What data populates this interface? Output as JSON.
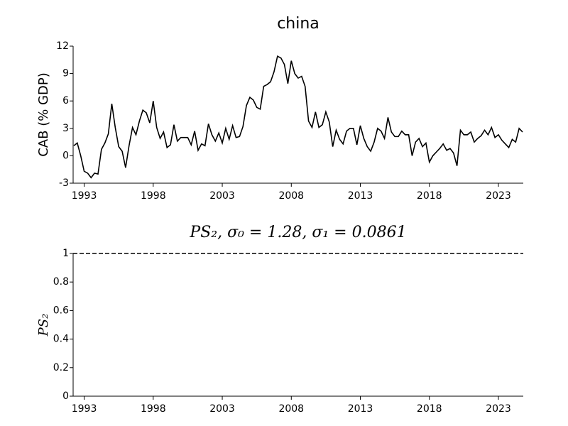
{
  "chart_data": [
    {
      "type": "line",
      "title": "china",
      "y_label": "CAB (% GDP)",
      "xlim": [
        1992.2,
        2024.8
      ],
      "xticks": [
        1993,
        1998,
        2003,
        2008,
        2013,
        2018,
        2023
      ],
      "ylim": [
        -3,
        12
      ],
      "yticks": [
        -3,
        0,
        3,
        6,
        9,
        12
      ],
      "series": [
        {
          "color": "#000000",
          "linestyle": "solid",
          "x": [
            1992.25,
            1992.5,
            1992.75,
            1993,
            1993.25,
            1993.5,
            1993.75,
            1994,
            1994.25,
            1994.5,
            1994.75,
            1995,
            1995.25,
            1995.5,
            1995.75,
            1996,
            1996.25,
            1996.5,
            1996.75,
            1997,
            1997.25,
            1997.5,
            1997.75,
            1998,
            1998.25,
            1998.5,
            1998.75,
            1999,
            1999.25,
            1999.5,
            1999.75,
            2000,
            2000.25,
            2000.5,
            2000.75,
            2001,
            2001.25,
            2001.5,
            2001.75,
            2002,
            2002.25,
            2002.5,
            2002.75,
            2003,
            2003.25,
            2003.5,
            2003.75,
            2004,
            2004.25,
            2004.5,
            2004.75,
            2005,
            2005.25,
            2005.5,
            2005.75,
            2006,
            2006.25,
            2006.5,
            2006.75,
            2007,
            2007.25,
            2007.5,
            2007.75,
            2008,
            2008.25,
            2008.5,
            2008.75,
            2009,
            2009.25,
            2009.5,
            2009.75,
            2010,
            2010.25,
            2010.5,
            2010.75,
            2011,
            2011.25,
            2011.5,
            2011.75,
            2012,
            2012.25,
            2012.5,
            2012.75,
            2013,
            2013.25,
            2013.5,
            2013.75,
            2014,
            2014.25,
            2014.5,
            2014.75,
            2015,
            2015.25,
            2015.5,
            2015.75,
            2016,
            2016.25,
            2016.5,
            2016.75,
            2017,
            2017.25,
            2017.5,
            2017.75,
            2018,
            2018.25,
            2018.5,
            2018.75,
            2019,
            2019.25,
            2019.5,
            2019.75,
            2020,
            2020.25,
            2020.5,
            2020.75,
            2021,
            2021.25,
            2021.5,
            2021.75,
            2022,
            2022.25,
            2022.5,
            2022.75,
            2023,
            2023.25,
            2023.5,
            2023.75,
            2024,
            2024.25,
            2024.5,
            2024.75
          ],
          "values": [
            1.1,
            1.4,
            0,
            -1.7,
            -1.9,
            -2.4,
            -1.9,
            -2.0,
            0.7,
            1.4,
            2.4,
            5.7,
            3.1,
            1.0,
            0.5,
            -1.3,
            1.1,
            3.1,
            2.3,
            3.8,
            5.0,
            4.7,
            3.6,
            6.0,
            3.1,
            1.9,
            2.6,
            0.9,
            1.2,
            3.4,
            1.6,
            2.0,
            2.0,
            2.0,
            1.2,
            2.7,
            0.6,
            1.3,
            1.1,
            3.5,
            2.3,
            1.6,
            2.5,
            1.4,
            3.0,
            1.8,
            3.3,
            2.0,
            2.1,
            3.2,
            5.5,
            6.4,
            6.1,
            5.3,
            5.1,
            7.6,
            7.8,
            8.1,
            9.2,
            10.9,
            10.7,
            10.0,
            7.9,
            10.4,
            9.0,
            8.5,
            8.7,
            7.6,
            3.8,
            3.1,
            4.8,
            3.1,
            3.4,
            4.8,
            3.7,
            1.0,
            2.8,
            1.8,
            1.3,
            2.7,
            3.0,
            3.0,
            1.2,
            3.3,
            1.9,
            1.0,
            0.5,
            1.5,
            3.0,
            2.7,
            1.9,
            4.2,
            2.6,
            2.1,
            2.1,
            2.7,
            2.3,
            2.3,
            0.0,
            1.5,
            1.9,
            1.0,
            1.4,
            -0.7,
            0.0,
            0.4,
            0.8,
            1.3,
            0.6,
            0.8,
            0.3,
            -1.1,
            2.8,
            2.3,
            2.3,
            2.6,
            1.5,
            1.9,
            2.2,
            2.8,
            2.3,
            3.1,
            2.0,
            2.3,
            1.7,
            1.3,
            0.9,
            1.8,
            1.5,
            3.0,
            2.6
          ]
        }
      ]
    },
    {
      "type": "line",
      "title": "PS₂, σ₀ = 1.28, σ₁ = 0.0861",
      "y_label": "PS₂",
      "xlim": [
        1992.2,
        2024.8
      ],
      "xticks": [
        1993,
        1998,
        2003,
        2008,
        2013,
        2018,
        2023
      ],
      "ylim": [
        0,
        1
      ],
      "yticks": [
        0,
        0.2,
        0.4,
        0.6,
        0.8,
        1
      ],
      "series": [
        {
          "color": "#000000",
          "linestyle": "dashed",
          "x": [
            1992.2,
            2024.8
          ],
          "values": [
            1,
            1
          ]
        }
      ]
    }
  ]
}
